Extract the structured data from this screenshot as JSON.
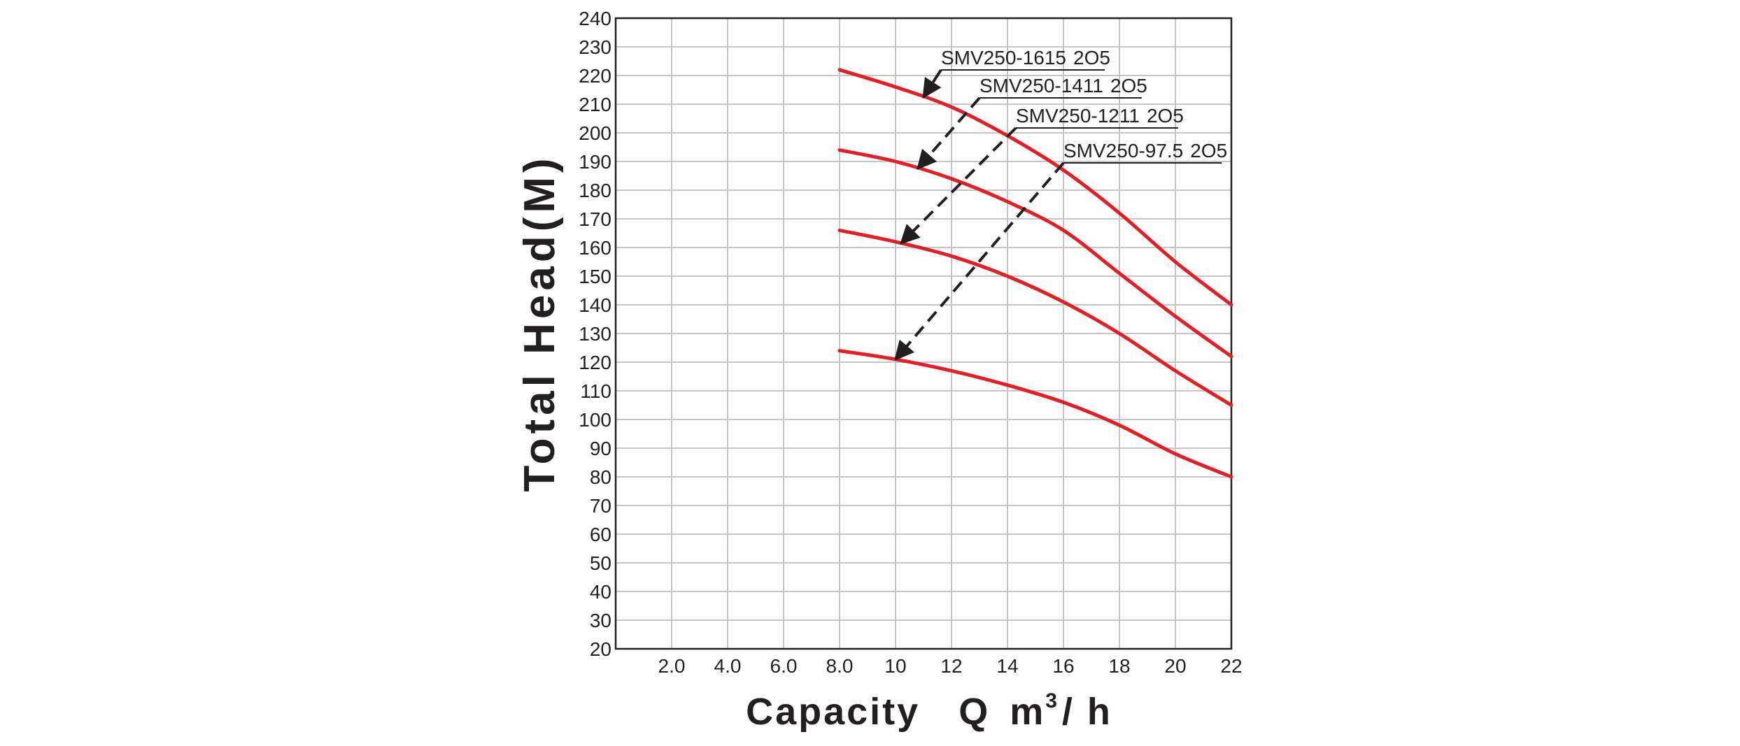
{
  "chart_data": {
    "type": "line",
    "title": "",
    "xlabel": {
      "main": "Capacity",
      "var": "Q",
      "unit_base": "m",
      "unit_sup": "3",
      "unit_rest": "/ h"
    },
    "ylabel": "Total Head(M)",
    "xlim": [
      0,
      22
    ],
    "ylim": [
      20,
      240
    ],
    "x_ticks": [
      {
        "value": 2,
        "label": "2.0"
      },
      {
        "value": 4,
        "label": "4.0"
      },
      {
        "value": 6,
        "label": "6.0"
      },
      {
        "value": 8,
        "label": "8.0"
      },
      {
        "value": 10,
        "label": "10"
      },
      {
        "value": 12,
        "label": "12"
      },
      {
        "value": 14,
        "label": "14"
      },
      {
        "value": 16,
        "label": "16"
      },
      {
        "value": 18,
        "label": "18"
      },
      {
        "value": 20,
        "label": "20"
      },
      {
        "value": 22,
        "label": "22"
      }
    ],
    "y_ticks": [
      20,
      30,
      40,
      50,
      60,
      70,
      80,
      90,
      100,
      110,
      120,
      130,
      140,
      150,
      160,
      170,
      180,
      190,
      200,
      210,
      220,
      230,
      240
    ],
    "grid": true,
    "series_color": "#e31e24",
    "annotation_color": "#231f20",
    "series": [
      {
        "label_main": "SMV250-1615",
        "label_suffix": "2O5",
        "x": [
          8,
          10,
          12,
          14,
          16,
          18,
          20,
          22
        ],
        "y": [
          222,
          216,
          209,
          199,
          187,
          172,
          155,
          140
        ]
      },
      {
        "label_main": "SMV250-1411",
        "label_suffix": "2O5",
        "x": [
          8,
          10,
          12,
          14,
          16,
          18,
          20,
          22
        ],
        "y": [
          194,
          190,
          184,
          176,
          166,
          151,
          136,
          122
        ]
      },
      {
        "label_main": "SMV250-1211",
        "label_suffix": "2O5",
        "x": [
          8,
          10,
          12,
          14,
          16,
          18,
          20,
          22
        ],
        "y": [
          166,
          162,
          157,
          150,
          141,
          130,
          117,
          105
        ]
      },
      {
        "label_main": "SMV250-97.5",
        "label_suffix": "2O5",
        "x": [
          8,
          10,
          12,
          14,
          16,
          18,
          20,
          22
        ],
        "y": [
          124,
          121,
          117,
          112,
          106,
          98,
          88,
          80
        ]
      }
    ]
  }
}
